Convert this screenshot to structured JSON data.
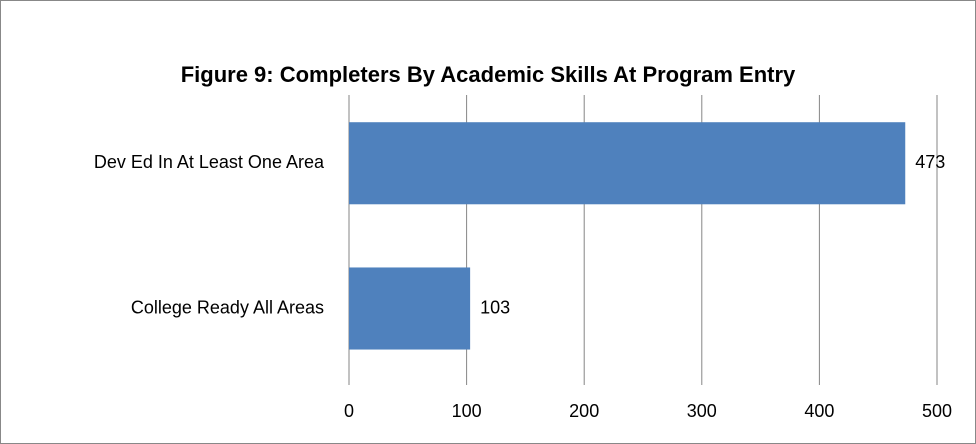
{
  "chart_data": {
    "type": "bar",
    "orientation": "horizontal",
    "title": "Figure 9: Completers By Academic Skills At Program Entry",
    "categories": [
      "Dev Ed In At Least One Area",
      "College Ready All Areas"
    ],
    "values": [
      473,
      103
    ],
    "color": "#4f81bd",
    "xlim": [
      0,
      500
    ],
    "xticks": [
      0,
      100,
      200,
      300,
      400,
      500
    ],
    "grid": true
  }
}
